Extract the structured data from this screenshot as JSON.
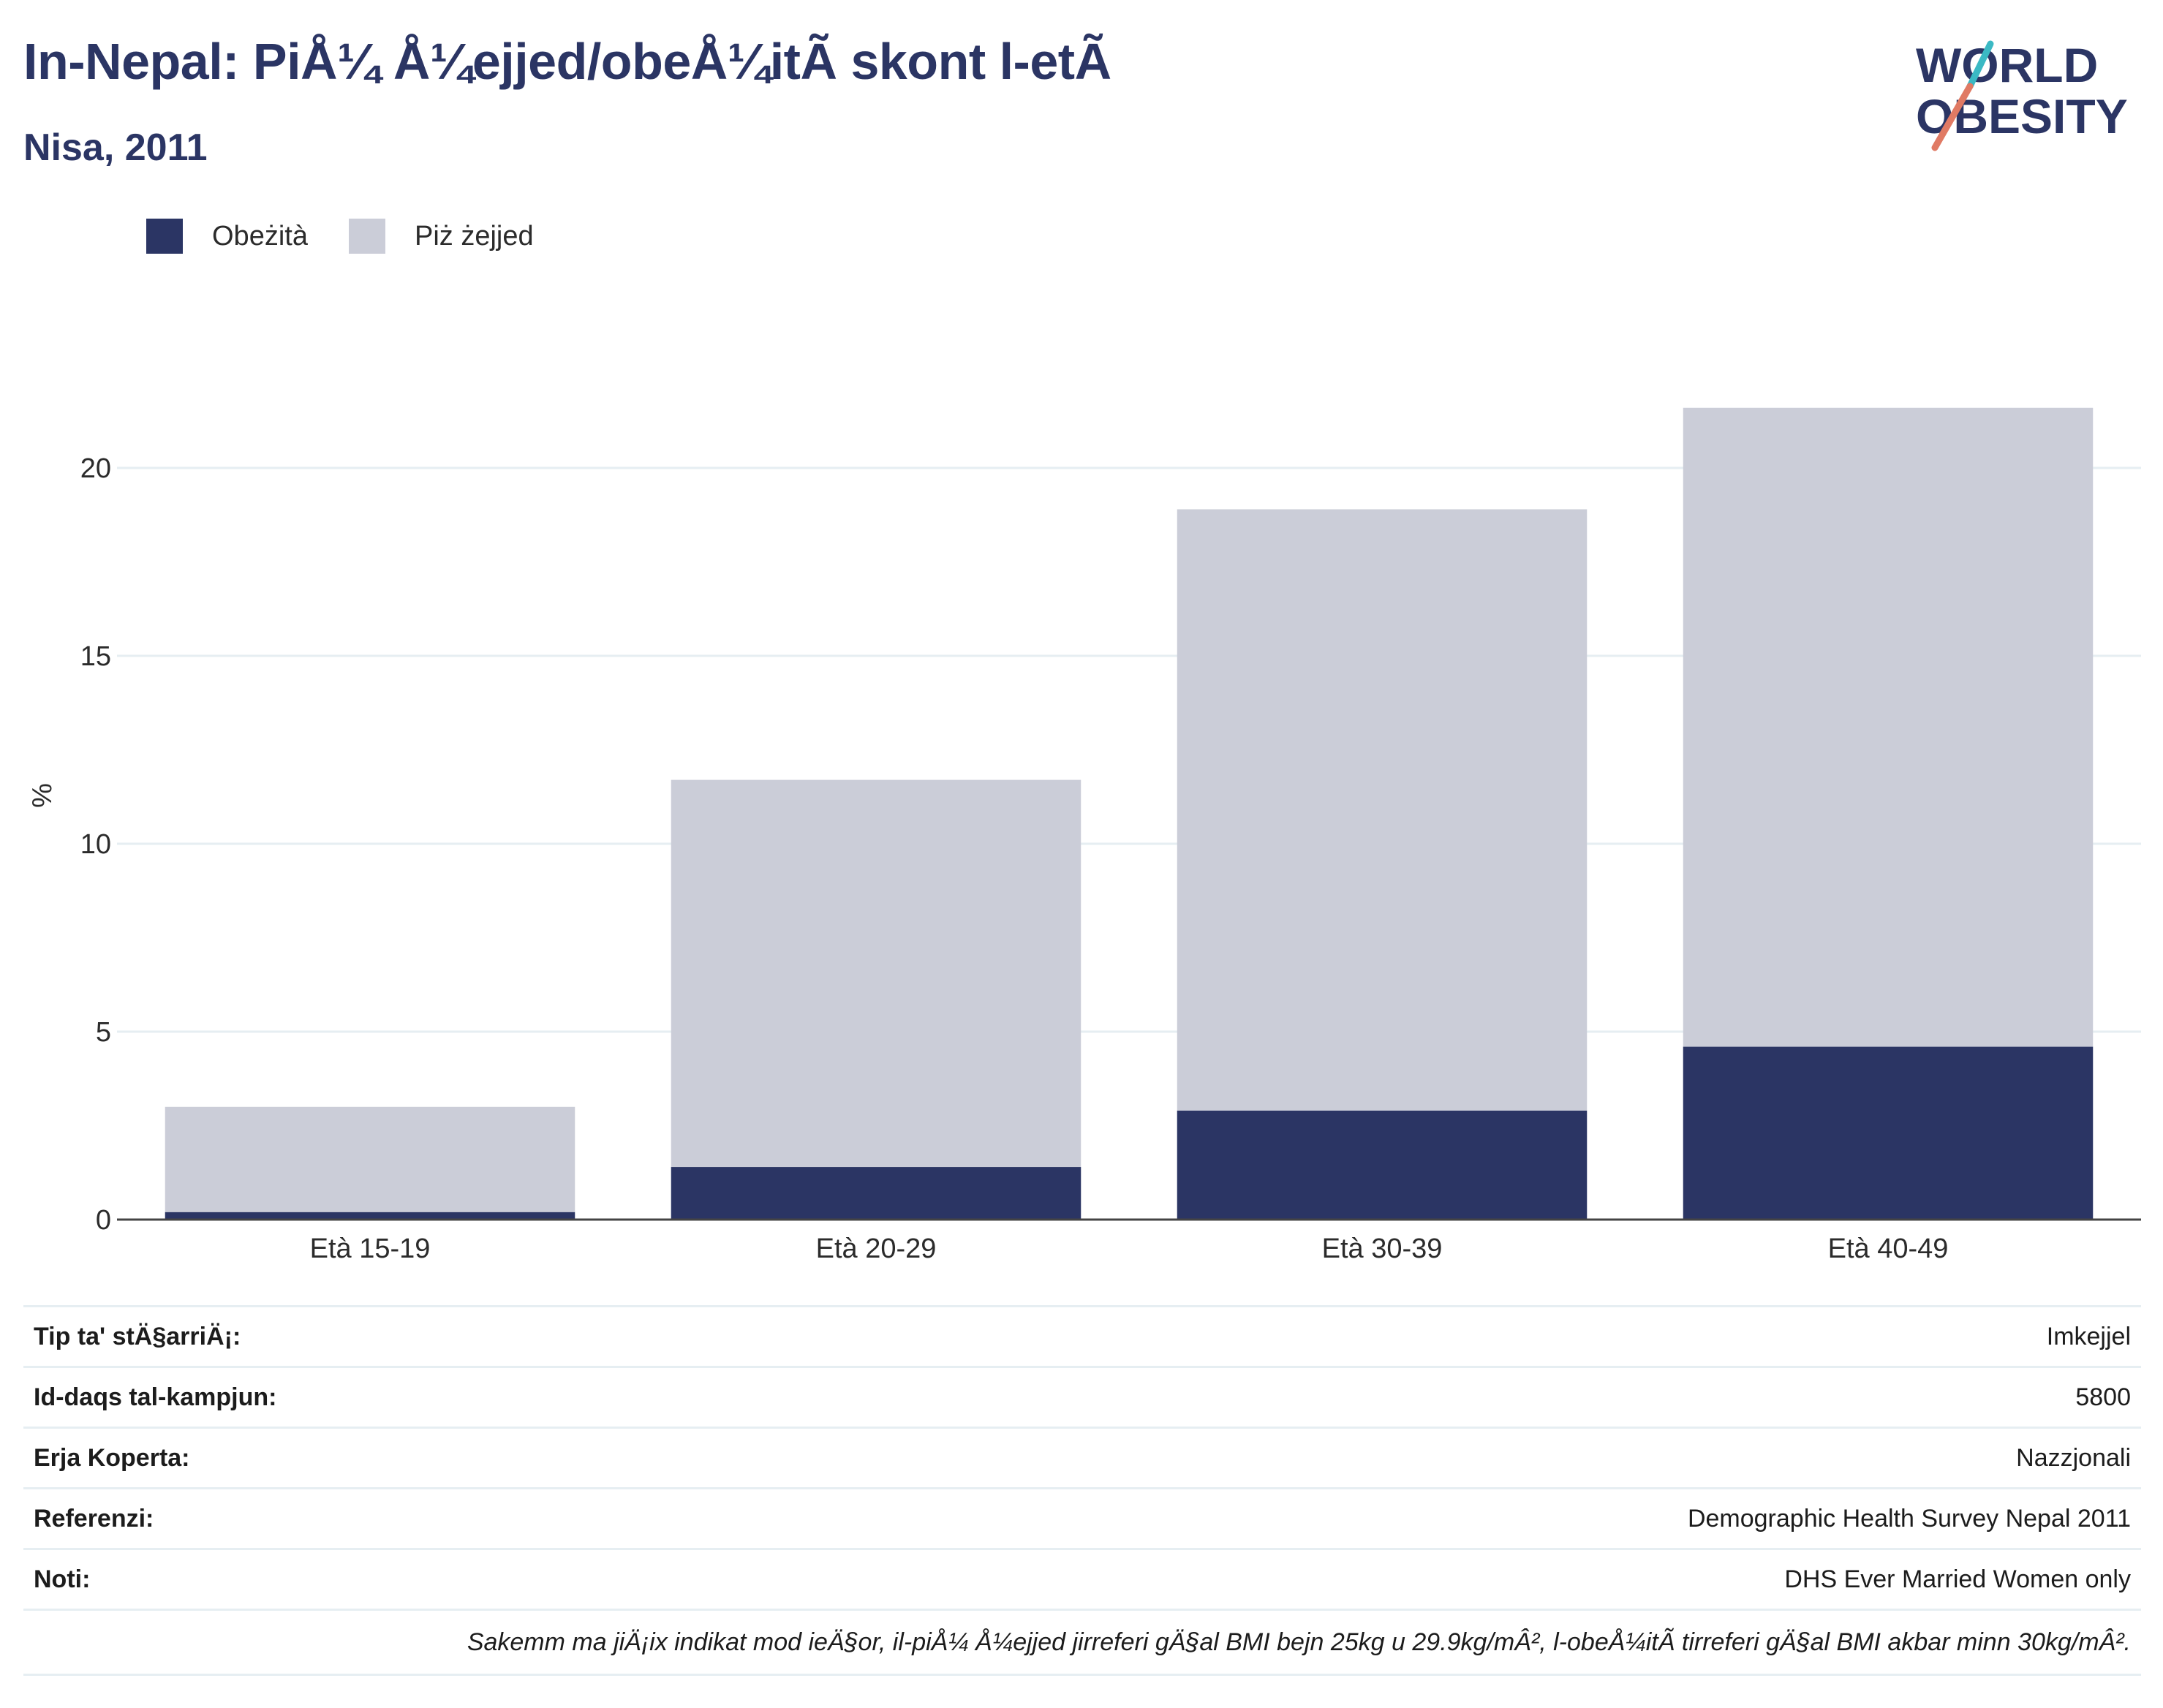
{
  "header": {
    "title": "In-Nepal: PiÅ¼ Å¼ejjed/obeÅ¼itÃ  skont l-etÃ",
    "subtitle": "Nisa, 2011"
  },
  "logo": {
    "line1": "WORLD",
    "line2": "OBESITY"
  },
  "legend": [
    {
      "label": "Obeżità",
      "color": "#2b3564"
    },
    {
      "label": "Piż żejjed",
      "color": "#cbcdd8"
    }
  ],
  "chart_data": {
    "type": "bar",
    "stacked": true,
    "categories": [
      "Età 15-19",
      "Età 20-29",
      "Età 30-39",
      "Età 40-49"
    ],
    "series": [
      {
        "name": "Obeżità",
        "color": "#2b3564",
        "values": [
          0.2,
          1.4,
          2.9,
          4.6
        ]
      },
      {
        "name": "Piż żejjed",
        "color": "#cbcdd8",
        "values": [
          2.8,
          10.3,
          16.0,
          17.0
        ]
      }
    ],
    "ylabel": "%",
    "ylim": [
      0,
      22.5
    ],
    "yticks": [
      0,
      5,
      10,
      15,
      20
    ],
    "grid": true,
    "legend_position": "top-left"
  },
  "info": {
    "rows": [
      {
        "key": "Tip ta' stÄ§arriÄ¡:",
        "value": "Imkejjel"
      },
      {
        "key": "Id-daqs tal-kampjun:",
        "value": "5800"
      },
      {
        "key": "Erja Koperta:",
        "value": "Nazzjonali"
      },
      {
        "key": "Referenzi:",
        "value": "Demographic Health Survey Nepal 2011"
      },
      {
        "key": "Noti:",
        "value": "DHS Ever Married Women only"
      }
    ],
    "footnote": "Sakemm ma jiÄ¡ix indikat mod ieÄ§or, il-piÅ¼ Å¼ejjed jirreferi gÄ§al BMI bejn 25kg u 29.9kg/mÂ², l-obeÅ¼itÃ  tirreferi gÄ§al BMI akbar minn 30kg/mÂ²."
  }
}
